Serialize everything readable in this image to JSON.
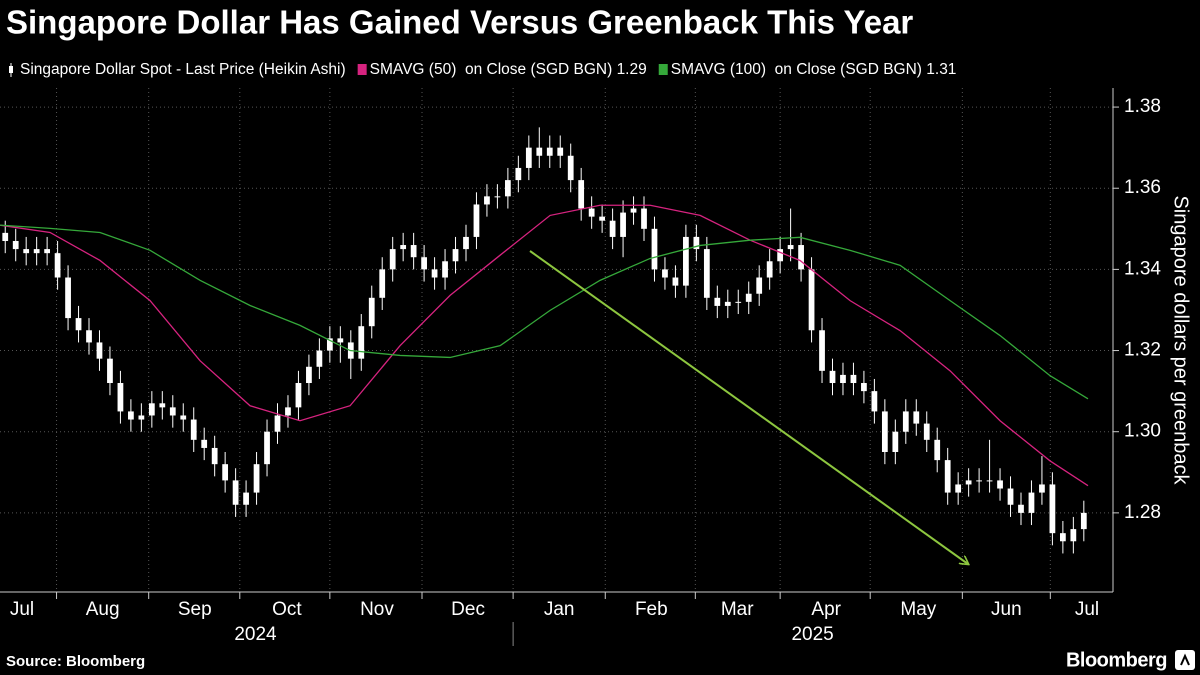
{
  "chart_data": {
    "type": "candlestick",
    "title": "Singapore Dollar Has Gained Versus Greenback This Year",
    "y_label": "Singapore dollars per greenback",
    "source": "Source: Bloomberg",
    "brand": "Bloomberg",
    "ylim": [
      1.2605,
      1.3847
    ],
    "yticks": [
      1.28,
      {
        "value": 1.3,
        "label": "1.30"
      },
      1.32,
      1.34,
      1.36,
      1.38
    ],
    "xlim": [
      -0.5,
      105.5
    ],
    "month_boundaries": [
      4.9,
      13.7,
      22.4,
      31.0,
      39.8,
      48.5,
      57.3,
      65.9,
      74.0,
      82.6,
      91.4,
      99.8
    ],
    "xticks": [
      {
        "value": 1.6,
        "label": "Jul"
      },
      {
        "value": 9.3,
        "label": "Aug"
      },
      {
        "value": 18.1,
        "label": "Sep"
      },
      {
        "value": 26.9,
        "label": "Oct"
      },
      {
        "value": 35.5,
        "label": "Nov"
      },
      {
        "value": 44.2,
        "label": "Dec"
      },
      {
        "value": 52.9,
        "label": "Jan"
      },
      {
        "value": 61.7,
        "label": "Feb"
      },
      {
        "value": 69.9,
        "label": "Mar"
      },
      {
        "value": 78.4,
        "label": "Apr"
      },
      {
        "value": 87.2,
        "label": "May"
      },
      {
        "value": 95.6,
        "label": "Jun"
      },
      {
        "value": 103.3,
        "label": "Jul"
      }
    ],
    "years": [
      {
        "value": 23.9,
        "label": "2024"
      },
      {
        "value": 77.1,
        "label": "2025"
      }
    ],
    "year_boundary": 48.5,
    "grid": true,
    "x": [
      0,
      1,
      2,
      3,
      4,
      5,
      6,
      7,
      8,
      9,
      10,
      11,
      12,
      13,
      14,
      15,
      16,
      17,
      18,
      19,
      20,
      21,
      22,
      23,
      24,
      25,
      26,
      27,
      28,
      29,
      30,
      31,
      32,
      33,
      34,
      35,
      36,
      37,
      38,
      39,
      40,
      41,
      42,
      43,
      44,
      45,
      46,
      47,
      48,
      49,
      50,
      51,
      52,
      53,
      54,
      55,
      56,
      57,
      58,
      59,
      60,
      61,
      62,
      63,
      64,
      65,
      66,
      67,
      68,
      69,
      70,
      71,
      72,
      73,
      74,
      75,
      76,
      77,
      78,
      79,
      80,
      81,
      82,
      83,
      84,
      85,
      86,
      87,
      88,
      89,
      90,
      91,
      92,
      93,
      94,
      95,
      96,
      97,
      98,
      99,
      100,
      101,
      102,
      103
    ],
    "series": [
      {
        "name": "Singapore Dollar Spot - Last Price (Heikin Ashi)",
        "color": "#ffffff",
        "open": [
          1.349,
          1.347,
          1.345,
          1.344,
          1.345,
          1.344,
          1.338,
          1.328,
          1.325,
          1.322,
          1.318,
          1.312,
          1.305,
          1.303,
          1.304,
          1.307,
          1.306,
          1.304,
          1.303,
          1.298,
          1.296,
          1.292,
          1.288,
          1.282,
          1.285,
          1.292,
          1.3,
          1.304,
          1.306,
          1.312,
          1.316,
          1.32,
          1.323,
          1.322,
          1.318,
          1.326,
          1.333,
          1.34,
          1.345,
          1.346,
          1.343,
          1.34,
          1.338,
          1.342,
          1.345,
          1.348,
          1.356,
          1.358,
          1.358,
          1.362,
          1.365,
          1.37,
          1.368,
          1.37,
          1.368,
          1.362,
          1.355,
          1.353,
          1.352,
          1.348,
          1.354,
          1.355,
          1.35,
          1.34,
          1.338,
          1.336,
          1.348,
          1.345,
          1.333,
          1.331,
          1.332,
          1.332,
          1.334,
          1.338,
          1.342,
          1.345,
          1.346,
          1.34,
          1.325,
          1.315,
          1.312,
          1.314,
          1.312,
          1.31,
          1.305,
          1.295,
          1.3,
          1.305,
          1.302,
          1.298,
          1.293,
          1.285,
          1.287,
          1.288,
          1.288,
          1.288,
          1.286,
          1.282,
          1.28,
          1.285,
          1.287,
          1.275,
          1.273,
          1.276
        ],
        "high": [
          1.352,
          1.35,
          1.348,
          1.348,
          1.348,
          1.347,
          1.341,
          1.331,
          1.328,
          1.325,
          1.321,
          1.315,
          1.308,
          1.307,
          1.31,
          1.31,
          1.309,
          1.307,
          1.306,
          1.301,
          1.299,
          1.295,
          1.291,
          1.288,
          1.295,
          1.303,
          1.307,
          1.309,
          1.315,
          1.319,
          1.323,
          1.326,
          1.326,
          1.325,
          1.329,
          1.336,
          1.343,
          1.348,
          1.349,
          1.349,
          1.346,
          1.343,
          1.345,
          1.348,
          1.351,
          1.359,
          1.361,
          1.361,
          1.365,
          1.368,
          1.373,
          1.375,
          1.373,
          1.373,
          1.371,
          1.365,
          1.358,
          1.356,
          1.355,
          1.357,
          1.358,
          1.358,
          1.353,
          1.343,
          1.341,
          1.351,
          1.351,
          1.348,
          1.336,
          1.335,
          1.335,
          1.337,
          1.341,
          1.345,
          1.348,
          1.355,
          1.349,
          1.343,
          1.328,
          1.318,
          1.317,
          1.317,
          1.315,
          1.313,
          1.308,
          1.303,
          1.308,
          1.308,
          1.305,
          1.301,
          1.296,
          1.29,
          1.291,
          1.291,
          1.298,
          1.291,
          1.289,
          1.285,
          1.288,
          1.294,
          1.29,
          1.278,
          1.279,
          1.283
        ],
        "low": [
          1.344,
          1.342,
          1.341,
          1.341,
          1.341,
          1.335,
          1.325,
          1.322,
          1.319,
          1.315,
          1.309,
          1.302,
          1.3,
          1.3,
          1.301,
          1.303,
          1.301,
          1.3,
          1.295,
          1.293,
          1.289,
          1.285,
          1.279,
          1.279,
          1.282,
          1.289,
          1.297,
          1.301,
          1.303,
          1.309,
          1.313,
          1.317,
          1.317,
          1.313,
          1.315,
          1.323,
          1.33,
          1.337,
          1.342,
          1.34,
          1.337,
          1.335,
          1.335,
          1.339,
          1.342,
          1.345,
          1.353,
          1.355,
          1.355,
          1.359,
          1.362,
          1.365,
          1.365,
          1.365,
          1.359,
          1.352,
          1.35,
          1.349,
          1.345,
          1.343,
          1.351,
          1.347,
          1.337,
          1.335,
          1.333,
          1.333,
          1.342,
          1.33,
          1.328,
          1.328,
          1.329,
          1.329,
          1.331,
          1.335,
          1.339,
          1.342,
          1.337,
          1.322,
          1.312,
          1.309,
          1.309,
          1.309,
          1.307,
          1.302,
          1.292,
          1.292,
          1.297,
          1.299,
          1.295,
          1.29,
          1.282,
          1.282,
          1.284,
          1.285,
          1.285,
          1.283,
          1.279,
          1.277,
          1.277,
          1.282,
          1.272,
          1.27,
          1.27,
          1.273
        ],
        "close": [
          1.347,
          1.345,
          1.344,
          1.345,
          1.344,
          1.338,
          1.328,
          1.325,
          1.322,
          1.318,
          1.312,
          1.305,
          1.303,
          1.304,
          1.307,
          1.306,
          1.304,
          1.303,
          1.298,
          1.296,
          1.292,
          1.288,
          1.282,
          1.285,
          1.292,
          1.3,
          1.304,
          1.306,
          1.312,
          1.316,
          1.32,
          1.323,
          1.322,
          1.318,
          1.326,
          1.333,
          1.34,
          1.345,
          1.346,
          1.343,
          1.34,
          1.338,
          1.342,
          1.345,
          1.348,
          1.356,
          1.358,
          1.358,
          1.362,
          1.365,
          1.37,
          1.368,
          1.37,
          1.368,
          1.362,
          1.355,
          1.353,
          1.352,
          1.348,
          1.354,
          1.355,
          1.35,
          1.34,
          1.338,
          1.336,
          1.348,
          1.345,
          1.333,
          1.331,
          1.332,
          1.332,
          1.334,
          1.338,
          1.342,
          1.345,
          1.346,
          1.34,
          1.325,
          1.315,
          1.312,
          1.314,
          1.312,
          1.31,
          1.305,
          1.295,
          1.3,
          1.305,
          1.302,
          1.298,
          1.293,
          1.285,
          1.287,
          1.288,
          1.288,
          1.288,
          1.286,
          1.282,
          1.28,
          1.285,
          1.287,
          1.275,
          1.273,
          1.276,
          1.28
        ]
      },
      {
        "name": "SMAVG (50)  on Close (SGD BGN) 1.29",
        "color": "#d6237f",
        "x": [
          -0.5,
          4.28,
          9.05,
          13.83,
          18.6,
          23.38,
          28.15,
          32.93,
          37.7,
          42.48,
          47.26,
          52.03,
          56.8,
          61.58,
          66.36,
          71.13,
          75.9,
          80.68,
          85.46,
          90.23,
          95.0,
          99.78,
          103.4
        ],
        "values": [
          1.3509,
          1.3491,
          1.3422,
          1.3323,
          1.3175,
          1.3064,
          1.3027,
          1.3064,
          1.3212,
          1.3336,
          1.3435,
          1.3533,
          1.3558,
          1.3558,
          1.3533,
          1.3472,
          1.3422,
          1.3323,
          1.3249,
          1.315,
          1.3027,
          1.2928,
          1.2867
        ]
      },
      {
        "name": "SMAVG (100)  on Close (SGD BGN) 1.31",
        "color": "#35a83a",
        "x": [
          -0.5,
          4.28,
          9.05,
          13.83,
          18.6,
          23.38,
          28.15,
          32.93,
          37.7,
          42.48,
          47.26,
          52.03,
          56.8,
          61.58,
          66.36,
          71.13,
          75.9,
          80.68,
          85.46,
          90.23,
          95.0,
          99.78,
          103.4
        ],
        "values": [
          1.3509,
          1.3501,
          1.3491,
          1.3447,
          1.3373,
          1.3311,
          1.3262,
          1.32,
          1.3188,
          1.3183,
          1.3212,
          1.3299,
          1.3373,
          1.3427,
          1.3459,
          1.3472,
          1.3479,
          1.3447,
          1.341,
          1.3323,
          1.3237,
          1.3138,
          1.3081
        ]
      }
    ]
  }
}
